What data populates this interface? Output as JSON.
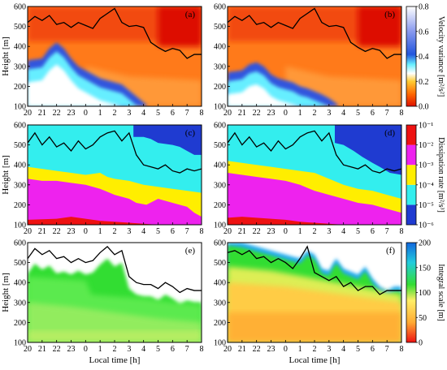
{
  "chart_data": [
    {
      "type": "heatmap",
      "panel_label": "(a)",
      "ylabel": "Height [m]",
      "xlabel": "",
      "x_ticks": [
        "20",
        "21",
        "22",
        "23",
        "0",
        "1",
        "2",
        "3",
        "4",
        "5",
        "6",
        "7",
        "8"
      ],
      "y_ticks": [
        100,
        200,
        300,
        400,
        500,
        600
      ],
      "ylim": [
        100,
        600
      ],
      "variable": "velocity_variance",
      "colorbar_ref": "velocity_variance",
      "line": {
        "x": [
          0,
          0.5,
          1,
          1.5,
          2,
          2.5,
          3,
          3.5,
          4,
          4.5,
          5,
          5.5,
          6,
          6.5,
          7,
          7.5,
          8,
          8.5,
          9,
          9.5,
          10,
          10.5,
          11,
          11.5,
          12
        ],
        "y": [
          520,
          550,
          530,
          555,
          510,
          520,
          495,
          520,
          505,
          490,
          540,
          565,
          590,
          520,
          500,
          505,
          495,
          420,
          395,
          375,
          390,
          380,
          340,
          360,
          360
        ]
      }
    },
    {
      "type": "heatmap",
      "panel_label": "(b)",
      "ylabel": "",
      "xlabel": "",
      "x_ticks": [
        "20",
        "21",
        "22",
        "23",
        "0",
        "1",
        "2",
        "3",
        "4",
        "5",
        "6",
        "7",
        "8"
      ],
      "y_ticks": [
        100,
        200,
        300,
        400,
        500,
        600
      ],
      "ylim": [
        100,
        600
      ],
      "variable": "velocity_variance",
      "colorbar_ref": "velocity_variance",
      "line": {
        "x": [
          0,
          0.5,
          1,
          1.5,
          2,
          2.5,
          3,
          3.5,
          4,
          4.5,
          5,
          5.5,
          6,
          6.5,
          7,
          7.5,
          8,
          8.5,
          9,
          9.5,
          10,
          10.5,
          11,
          11.5,
          12
        ],
        "y": [
          520,
          550,
          530,
          555,
          510,
          520,
          495,
          520,
          505,
          490,
          540,
          565,
          590,
          520,
          500,
          505,
          495,
          420,
          395,
          375,
          390,
          380,
          340,
          360,
          360
        ]
      }
    },
    {
      "type": "heatmap",
      "panel_label": "(c)",
      "ylabel": "Height [m]",
      "xlabel": "",
      "x_ticks": [
        "20",
        "21",
        "22",
        "23",
        "0",
        "1",
        "2",
        "3",
        "4",
        "5",
        "6",
        "7",
        "8"
      ],
      "y_ticks": [
        100,
        200,
        300,
        400,
        500,
        600
      ],
      "ylim": [
        100,
        600
      ],
      "variable": "dissipation_rate",
      "colorbar_ref": "dissipation_rate",
      "line": {
        "x": [
          0,
          0.5,
          1,
          1.5,
          2,
          2.5,
          3,
          3.5,
          4,
          4.5,
          5,
          5.5,
          6,
          6.5,
          7,
          7.5,
          8,
          8.5,
          9,
          9.5,
          10,
          10.5,
          11,
          11.5,
          12
        ],
        "y": [
          510,
          560,
          500,
          540,
          490,
          510,
          470,
          520,
          480,
          500,
          540,
          560,
          570,
          520,
          560,
          450,
          400,
          390,
          380,
          400,
          370,
          360,
          380,
          370,
          380
        ]
      }
    },
    {
      "type": "heatmap",
      "panel_label": "(d)",
      "ylabel": "",
      "xlabel": "",
      "x_ticks": [
        "20",
        "21",
        "22",
        "23",
        "0",
        "1",
        "2",
        "3",
        "4",
        "5",
        "6",
        "7",
        "8"
      ],
      "y_ticks": [
        100,
        200,
        300,
        400,
        500,
        600
      ],
      "ylim": [
        100,
        600
      ],
      "variable": "dissipation_rate",
      "colorbar_ref": "dissipation_rate",
      "line": {
        "x": [
          0,
          0.5,
          1,
          1.5,
          2,
          2.5,
          3,
          3.5,
          4,
          4.5,
          5,
          5.5,
          6,
          6.5,
          7,
          7.5,
          8,
          8.5,
          9,
          9.5,
          10,
          10.5,
          11,
          11.5,
          12
        ],
        "y": [
          510,
          560,
          500,
          540,
          490,
          510,
          470,
          520,
          480,
          500,
          540,
          560,
          570,
          520,
          560,
          450,
          400,
          390,
          380,
          400,
          370,
          360,
          380,
          370,
          380
        ]
      }
    },
    {
      "type": "heatmap",
      "panel_label": "(e)",
      "ylabel": "Height [m]",
      "xlabel": "Local time [h]",
      "x_ticks": [
        "20",
        "21",
        "22",
        "23",
        "0",
        "1",
        "2",
        "3",
        "4",
        "5",
        "6",
        "7",
        "8"
      ],
      "y_ticks": [
        100,
        200,
        300,
        400,
        500,
        600
      ],
      "ylim": [
        100,
        600
      ],
      "variable": "integral_scale",
      "colorbar_ref": "integral_scale",
      "line": {
        "x": [
          0,
          0.5,
          1,
          1.5,
          2,
          2.5,
          3,
          3.5,
          4,
          4.5,
          5,
          5.5,
          6,
          6.5,
          7,
          7.5,
          8,
          8.5,
          9,
          9.5,
          10,
          10.5,
          11,
          11.5,
          12
        ],
        "y": [
          520,
          570,
          540,
          560,
          520,
          530,
          500,
          520,
          500,
          510,
          550,
          580,
          540,
          560,
          430,
          400,
          390,
          390,
          370,
          400,
          380,
          350,
          370,
          360,
          360
        ]
      }
    },
    {
      "type": "heatmap",
      "panel_label": "(f)",
      "ylabel": "",
      "xlabel": "Local time [h]",
      "x_ticks": [
        "20",
        "21",
        "22",
        "23",
        "0",
        "1",
        "2",
        "3",
        "4",
        "5",
        "6",
        "7",
        "8"
      ],
      "y_ticks": [
        100,
        200,
        300,
        400,
        500,
        600
      ],
      "ylim": [
        100,
        600
      ],
      "variable": "integral_scale",
      "colorbar_ref": "integral_scale",
      "line": {
        "x": [
          0,
          0.5,
          1,
          1.5,
          2,
          2.5,
          3,
          3.5,
          4,
          4.5,
          5,
          5.5,
          6,
          6.5,
          7,
          7.5,
          8,
          8.5,
          9,
          9.5,
          10,
          10.5,
          11,
          11.5,
          12
        ],
        "y": [
          550,
          560,
          540,
          560,
          520,
          530,
          500,
          520,
          500,
          470,
          520,
          580,
          450,
          430,
          410,
          430,
          380,
          400,
          360,
          380,
          380,
          340,
          360,
          360,
          360
        ]
      }
    }
  ],
  "colorbars": {
    "velocity_variance": {
      "label": "Velocity variance [m²/s²]",
      "ticks": [
        "0.0",
        "0.2",
        "0.4",
        "0.6",
        "0.8"
      ],
      "range": [
        0,
        0.8
      ],
      "colors": [
        "#dd1100",
        "#ff6600",
        "#ffcc33",
        "#ffffff",
        "#66eeff",
        "#2255dd",
        "#8899ee",
        "#ffffff"
      ]
    },
    "dissipation_rate": {
      "label": "Dissipation rate [m²/s³]",
      "ticks": [
        "10⁻⁶",
        "10⁻⁵",
        "10⁻⁴",
        "10⁻³",
        "10⁻²",
        "10⁻¹"
      ],
      "colors": [
        "#1f3bd1",
        "#33eeee",
        "#ffee00",
        "#ee22ee",
        "#ee1111"
      ]
    },
    "integral_scale": {
      "label": "Integral scale [m]",
      "ticks": [
        "0",
        "50",
        "100",
        "150",
        "200"
      ],
      "range": [
        0,
        200
      ],
      "colors": [
        "#ee1111",
        "#ffaa33",
        "#ffee66",
        "#33dd33",
        "#22ccdd",
        "#1166dd"
      ]
    }
  }
}
